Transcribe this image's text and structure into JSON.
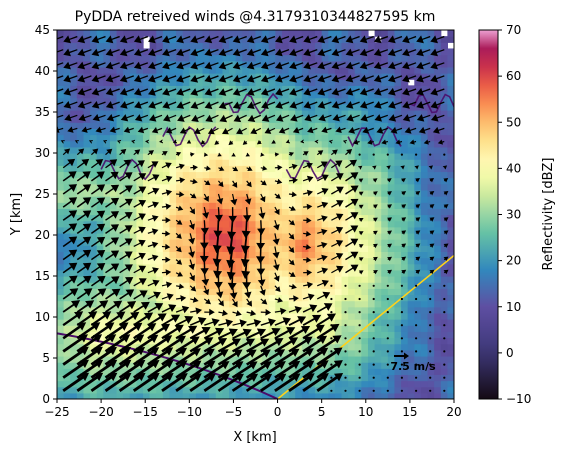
{
  "chart_data": {
    "type": "heatmap",
    "title": "PyDDA retreived winds @4.3179310344827595 km",
    "xlabel": "X [km]",
    "ylabel": "Y [km]",
    "xlim": [
      -25,
      20
    ],
    "ylim": [
      0,
      45
    ],
    "xticks": [
      -25,
      -20,
      -15,
      -10,
      -5,
      0,
      5,
      10,
      15,
      20
    ],
    "yticks": [
      0,
      5,
      10,
      15,
      20,
      25,
      30,
      35,
      40,
      45
    ],
    "colorbar": {
      "label": "Reflectivity [dBZ]",
      "range": [
        -10,
        70
      ],
      "ticks": [
        -10,
        0,
        10,
        20,
        30,
        40,
        50,
        60,
        70
      ],
      "colormap": "Spectral_r"
    },
    "quiver_key": {
      "label": "7.5 m/s",
      "value": 7.5
    },
    "reflectivity_features": [
      {
        "kind": "core",
        "center": [
          -6,
          20
        ],
        "peak_dBZ": 62
      },
      {
        "kind": "core",
        "center": [
          3,
          19
        ],
        "peak_dBZ": 55
      },
      {
        "kind": "band",
        "from": [
          -25,
          25
        ],
        "to": [
          10,
          27
        ],
        "level_dBZ": 32
      },
      {
        "kind": "band",
        "from": [
          -20,
          8
        ],
        "to": [
          5,
          10
        ],
        "level_dBZ": 40
      },
      {
        "kind": "band",
        "from": [
          -15,
          31
        ],
        "to": [
          10,
          35
        ],
        "level_dBZ": 22
      }
    ],
    "wind_regimes": [
      {
        "region": "north",
        "direction": "west-southwest",
        "speed_m_s": 8
      },
      {
        "region": "central-west",
        "direction": "north-east",
        "speed_m_s": 10
      },
      {
        "region": "core",
        "direction": "south",
        "speed_m_s": 11
      },
      {
        "region": "south",
        "direction": "north-east",
        "speed_m_s": 9
      }
    ],
    "overlays": [
      {
        "kind": "radar-beam-line",
        "color": "#ffd21a",
        "from": [
          0,
          0
        ],
        "to": [
          20,
          17.5
        ]
      },
      {
        "kind": "radar-range-arc",
        "color": "#4b0c6b",
        "from": [
          -25,
          8
        ],
        "to": [
          0,
          0
        ]
      }
    ]
  }
}
